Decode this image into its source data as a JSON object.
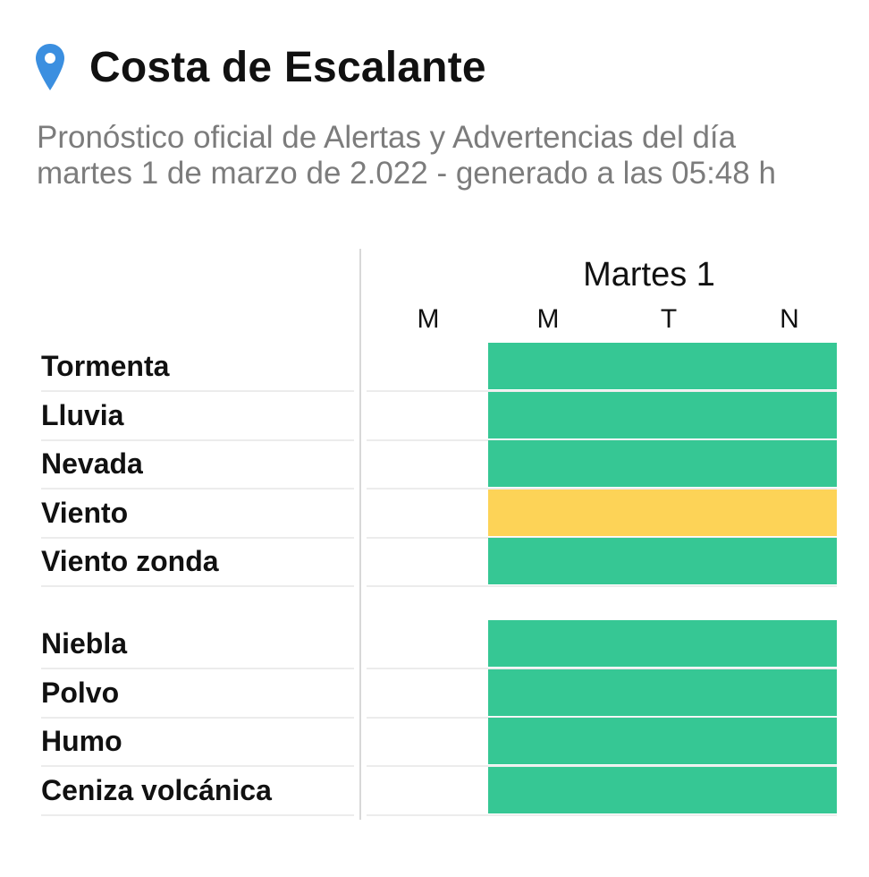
{
  "header": {
    "title": "Costa de Escalante",
    "subtitle_line1": "Pronóstico oficial de Alertas y Advertencias del día",
    "subtitle_line2": "martes 1 de marzo de 2.022 - generado a las 05:48 h",
    "location_icon": "map-pin-icon",
    "icon_color": "#3b8fe0"
  },
  "table": {
    "day": "Martes 1",
    "periods": [
      "M",
      "M",
      "T",
      "N"
    ],
    "groups": [
      {
        "rows": [
          {
            "label": "Tormenta",
            "level": "green"
          },
          {
            "label": "Lluvia",
            "level": "green"
          },
          {
            "label": "Nevada",
            "level": "green"
          },
          {
            "label": "Viento",
            "level": "yellow"
          },
          {
            "label": "Viento zonda",
            "level": "green"
          }
        ]
      },
      {
        "rows": [
          {
            "label": "Niebla",
            "level": "green"
          },
          {
            "label": "Polvo",
            "level": "green"
          },
          {
            "label": "Humo",
            "level": "green"
          },
          {
            "label": "Ceniza volcánica",
            "level": "green"
          }
        ]
      }
    ]
  },
  "colors": {
    "green": "#36c794",
    "yellow": "#fdd357"
  }
}
